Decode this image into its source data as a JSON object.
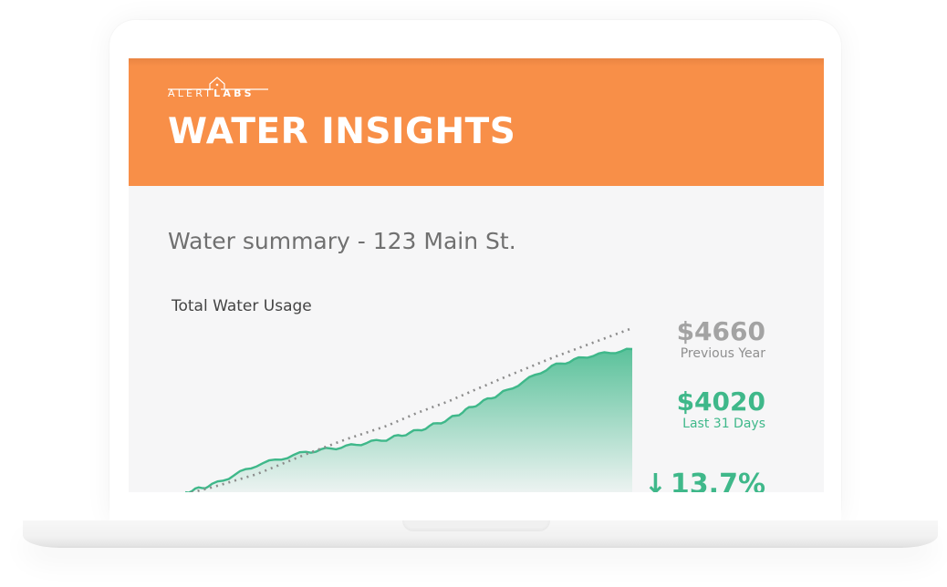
{
  "brand": {
    "logo_text_light": "ALERT",
    "logo_text_bold": "LABS",
    "logo_icon": "house-icon"
  },
  "header": {
    "title": "WATER INSIGHTS",
    "background": "#f88f47"
  },
  "summary": {
    "heading": "Water summary - 123 Main St."
  },
  "stats": {
    "previous_year": {
      "value": "$4660",
      "label": "Previous Year",
      "color": "#a3a3a3"
    },
    "last_31_days": {
      "value": "$4020",
      "label": "Last 31 Days",
      "color": "#3fb88a"
    },
    "change": {
      "icon": "arrow-down-icon",
      "arrow": "↓",
      "value": "13.7%",
      "color": "#3fb88a"
    }
  },
  "chart_data": {
    "type": "area",
    "title": "Total Water Usage",
    "xlabel": "",
    "ylabel": "",
    "grid": false,
    "legend": "none (values shown at right)",
    "x": [
      0,
      0.06,
      0.16,
      0.27,
      0.36,
      0.45,
      0.52,
      0.59,
      0.65,
      0.72,
      0.82,
      0.9,
      1.0
    ],
    "series": [
      {
        "name": "Last 31 Days",
        "style": "filled area, green",
        "color": "#3fb88a",
        "values": [
          0,
          0.05,
          0.19,
          0.28,
          0.32,
          0.37,
          0.43,
          0.51,
          0.61,
          0.71,
          0.88,
          0.95,
          1.0
        ],
        "end_value": "$4020"
      },
      {
        "name": "Previous Year",
        "style": "dotted line, gray",
        "color": "#8c8c8c",
        "values": [
          0,
          0.04,
          0.12,
          0.24,
          0.33,
          0.41,
          0.49,
          0.56,
          0.63,
          0.71,
          0.82,
          0.9,
          1.0
        ],
        "end_value": "$4660"
      }
    ]
  }
}
